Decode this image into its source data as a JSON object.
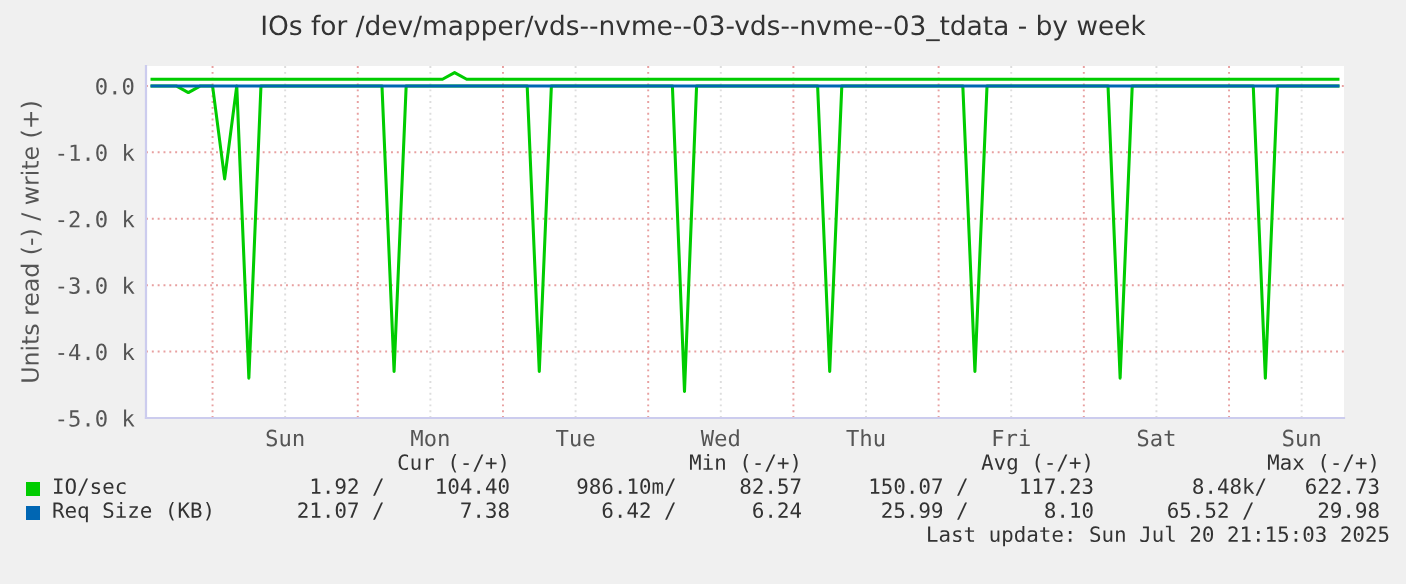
{
  "chart_data": {
    "type": "line",
    "title": "IOs for /dev/mapper/vds--nvme--03-vds--nvme--03_tdata - by week",
    "ylabel": "Units read (-) / write (+)",
    "categories": [
      null,
      null,
      null,
      null,
      null,
      null,
      null,
      null,
      null,
      null,
      null,
      "Sun",
      null,
      null,
      null,
      null,
      null,
      null,
      null,
      null,
      null,
      null,
      null,
      "Mon",
      null,
      null,
      null,
      null,
      null,
      null,
      null,
      null,
      null,
      null,
      null,
      "Tue",
      null,
      null,
      null,
      null,
      null,
      null,
      null,
      null,
      null,
      null,
      null,
      "Wed",
      null,
      null,
      null,
      null,
      null,
      null,
      null,
      null,
      null,
      null,
      null,
      "Thu",
      null,
      null,
      null,
      null,
      null,
      null,
      null,
      null,
      null,
      null,
      null,
      "Fri",
      null,
      null,
      null,
      null,
      null,
      null,
      null,
      null,
      null,
      null,
      null,
      "Sat",
      null,
      null,
      null,
      null,
      null,
      null,
      null,
      null,
      null,
      null,
      null,
      "Sun",
      null,
      null,
      null
    ],
    "ylim": [
      -5000,
      300
    ],
    "yticks": [
      {
        "value": -5000,
        "label": "-5.0 k"
      },
      {
        "value": -4000,
        "label": "-4.0 k"
      },
      {
        "value": -3000,
        "label": "-3.0 k"
      },
      {
        "value": -2000,
        "label": "-2.0 k"
      },
      {
        "value": -1000,
        "label": "-1.0 k"
      },
      {
        "value": 0,
        "label": "0.0"
      }
    ],
    "grid": true,
    "legend": "bottom",
    "series": [
      {
        "name": "IO/sec",
        "color": "#00cc00",
        "values": [
          0,
          0,
          0,
          -100,
          0,
          0,
          -1400,
          0,
          -4400,
          0,
          0,
          0,
          0,
          0,
          0,
          0,
          0,
          0,
          0,
          0,
          -4300,
          0,
          0,
          0,
          0,
          0,
          0,
          0,
          0,
          0,
          0,
          0,
          -4300,
          0,
          0,
          0,
          0,
          0,
          0,
          0,
          0,
          0,
          0,
          0,
          -4600,
          0,
          0,
          0,
          0,
          0,
          0,
          0,
          0,
          0,
          0,
          0,
          -4300,
          0,
          0,
          0,
          0,
          0,
          0,
          0,
          0,
          0,
          0,
          0,
          -4300,
          0,
          0,
          0,
          0,
          0,
          0,
          0,
          0,
          0,
          0,
          0,
          -4400,
          0,
          0,
          0,
          0,
          0,
          0,
          0,
          0,
          0,
          0,
          0,
          -4400,
          0,
          0,
          0,
          0,
          0,
          0
        ]
      },
      {
        "color": "#00cc00",
        "values": [
          100,
          100,
          100,
          100,
          100,
          100,
          100,
          100,
          100,
          100,
          100,
          100,
          100,
          100,
          100,
          100,
          100,
          100,
          100,
          100,
          100,
          100,
          100,
          100,
          100,
          200,
          100,
          100,
          100,
          100,
          100,
          100,
          100,
          100,
          100,
          100,
          100,
          100,
          100,
          100,
          100,
          100,
          100,
          100,
          100,
          100,
          100,
          100,
          100,
          100,
          100,
          100,
          100,
          100,
          100,
          100,
          100,
          100,
          100,
          100,
          100,
          100,
          100,
          100,
          100,
          100,
          100,
          100,
          100,
          100,
          100,
          100,
          100,
          100,
          100,
          100,
          100,
          100,
          100,
          100,
          100,
          100,
          100,
          100,
          100,
          100,
          100,
          100,
          100,
          100,
          100,
          100,
          100,
          100,
          100,
          100,
          100,
          100,
          100
        ]
      },
      {
        "name": "Req Size (KB)",
        "color": "#0066b3",
        "values": [
          0,
          0,
          0,
          0,
          0,
          0,
          0,
          0,
          0,
          0,
          0,
          0,
          0,
          0,
          0,
          0,
          0,
          0,
          0,
          0,
          0,
          0,
          0,
          0,
          0,
          0,
          0,
          0,
          0,
          0,
          0,
          0,
          0,
          0,
          0,
          0,
          0,
          0,
          0,
          0,
          0,
          0,
          0,
          0,
          0,
          0,
          0,
          0,
          0,
          0,
          0,
          0,
          0,
          0,
          0,
          0,
          0,
          0,
          0,
          0,
          0,
          0,
          0,
          0,
          0,
          0,
          0,
          0,
          0,
          0,
          0,
          0,
          0,
          0,
          0,
          0,
          0,
          0,
          0,
          0,
          0,
          0,
          0,
          0,
          0,
          0,
          0,
          0,
          0,
          0,
          0,
          0,
          0,
          0,
          0,
          0,
          0,
          0,
          0
        ]
      }
    ],
    "annotations": [
      "Cur (-/+)",
      "Min (-/+)",
      "Avg (-/+)",
      "Max (-/+)",
      "1.92 /    104.40",
      "986.10m/     82.57",
      "150.07 /    117.23",
      "8.48k/   622.73",
      "21.07 /      7.38",
      "6.42 /      6.24",
      "25.99 /      8.10",
      "65.52 /     29.98",
      "Last update: Sun Jul 20 21:15:03 2025"
    ]
  }
}
